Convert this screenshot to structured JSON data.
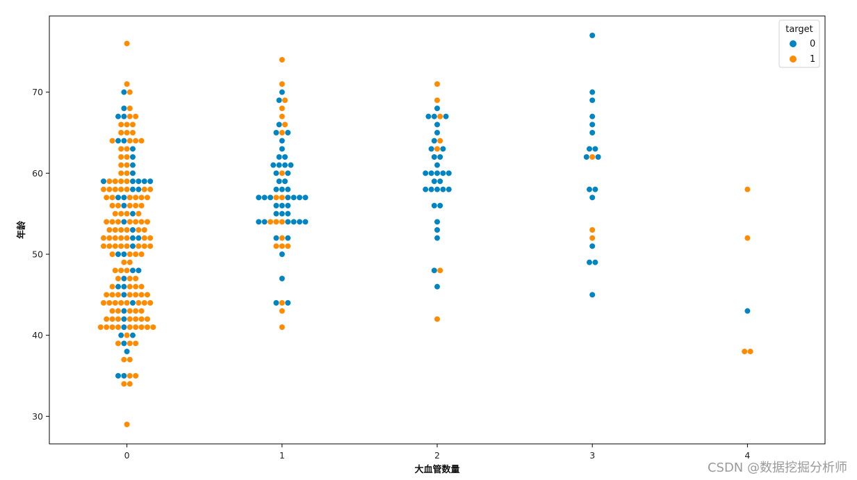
{
  "watermark": "CSDN @数据挖掘分析师",
  "chart_data": {
    "type": "scatter",
    "subtype": "swarm",
    "title": "",
    "xlabel": "大血管数量",
    "ylabel": "年龄",
    "categories": [
      "0",
      "1",
      "2",
      "3",
      "4"
    ],
    "ylim": [
      26.6,
      79.4
    ],
    "yticks": [
      30,
      40,
      50,
      60,
      70
    ],
    "grid": false,
    "legend": {
      "title": "target",
      "placement": "top-right",
      "entries": [
        {
          "label": "0",
          "color": "#0184c2"
        },
        {
          "label": "1",
          "color": "#ff8c00"
        }
      ]
    },
    "series": [
      {
        "name": "0",
        "color": "#0184c2",
        "points": [
          [
            0,
            70
          ],
          [
            0,
            68
          ],
          [
            0,
            67
          ],
          [
            0,
            67
          ],
          [
            0,
            64
          ],
          [
            0,
            64
          ],
          [
            0,
            63
          ],
          [
            0,
            62
          ],
          [
            0,
            61
          ],
          [
            0,
            60
          ],
          [
            0,
            59
          ],
          [
            0,
            59
          ],
          [
            0,
            59
          ],
          [
            0,
            59
          ],
          [
            0,
            59
          ],
          [
            0,
            58
          ],
          [
            0,
            58
          ],
          [
            0,
            57
          ],
          [
            0,
            57
          ],
          [
            0,
            56
          ],
          [
            0,
            55
          ],
          [
            0,
            54
          ],
          [
            0,
            53
          ],
          [
            0,
            52
          ],
          [
            0,
            52
          ],
          [
            0,
            51
          ],
          [
            0,
            50
          ],
          [
            0,
            50
          ],
          [
            0,
            48
          ],
          [
            0,
            48
          ],
          [
            0,
            47
          ],
          [
            0,
            46
          ],
          [
            0,
            46
          ],
          [
            0,
            45
          ],
          [
            0,
            44
          ],
          [
            0,
            43
          ],
          [
            0,
            42
          ],
          [
            0,
            41
          ],
          [
            0,
            40
          ],
          [
            0,
            40
          ],
          [
            0,
            39
          ],
          [
            0,
            38
          ],
          [
            0,
            35
          ],
          [
            0,
            35
          ],
          [
            1,
            70
          ],
          [
            1,
            69
          ],
          [
            1,
            66
          ],
          [
            1,
            65
          ],
          [
            1,
            65
          ],
          [
            1,
            64
          ],
          [
            1,
            63
          ],
          [
            1,
            62
          ],
          [
            1,
            62
          ],
          [
            1,
            61
          ],
          [
            1,
            61
          ],
          [
            1,
            61
          ],
          [
            1,
            61
          ],
          [
            1,
            60
          ],
          [
            1,
            60
          ],
          [
            1,
            59
          ],
          [
            1,
            59
          ],
          [
            1,
            58
          ],
          [
            1,
            58
          ],
          [
            1,
            58
          ],
          [
            1,
            57
          ],
          [
            1,
            57
          ],
          [
            1,
            57
          ],
          [
            1,
            57
          ],
          [
            1,
            57
          ],
          [
            1,
            57
          ],
          [
            1,
            57
          ],
          [
            1,
            56
          ],
          [
            1,
            56
          ],
          [
            1,
            56
          ],
          [
            1,
            55
          ],
          [
            1,
            55
          ],
          [
            1,
            55
          ],
          [
            1,
            54
          ],
          [
            1,
            54
          ],
          [
            1,
            54
          ],
          [
            1,
            54
          ],
          [
            1,
            54
          ],
          [
            1,
            54
          ],
          [
            1,
            52
          ],
          [
            1,
            52
          ],
          [
            1,
            50
          ],
          [
            1,
            47
          ],
          [
            1,
            44
          ],
          [
            1,
            44
          ],
          [
            2,
            68
          ],
          [
            2,
            67
          ],
          [
            2,
            67
          ],
          [
            2,
            67
          ],
          [
            2,
            66
          ],
          [
            2,
            65
          ],
          [
            2,
            64
          ],
          [
            2,
            63
          ],
          [
            2,
            63
          ],
          [
            2,
            62
          ],
          [
            2,
            62
          ],
          [
            2,
            61
          ],
          [
            2,
            60
          ],
          [
            2,
            60
          ],
          [
            2,
            60
          ],
          [
            2,
            60
          ],
          [
            2,
            60
          ],
          [
            2,
            59
          ],
          [
            2,
            59
          ],
          [
            2,
            58
          ],
          [
            2,
            58
          ],
          [
            2,
            58
          ],
          [
            2,
            58
          ],
          [
            2,
            58
          ],
          [
            2,
            56
          ],
          [
            2,
            56
          ],
          [
            2,
            54
          ],
          [
            2,
            53
          ],
          [
            2,
            52
          ],
          [
            2,
            48
          ],
          [
            2,
            46
          ],
          [
            3,
            77
          ],
          [
            3,
            70
          ],
          [
            3,
            69
          ],
          [
            3,
            67
          ],
          [
            3,
            66
          ],
          [
            3,
            65
          ],
          [
            3,
            63
          ],
          [
            3,
            63
          ],
          [
            3,
            62
          ],
          [
            3,
            62
          ],
          [
            3,
            58
          ],
          [
            3,
            58
          ],
          [
            3,
            57
          ],
          [
            3,
            51
          ],
          [
            3,
            49
          ],
          [
            3,
            49
          ],
          [
            3,
            45
          ],
          [
            4,
            43
          ]
        ]
      },
      {
        "name": "1",
        "color": "#ff8c00",
        "points": [
          [
            0,
            76
          ],
          [
            0,
            71
          ],
          [
            0,
            70
          ],
          [
            0,
            68
          ],
          [
            0,
            67
          ],
          [
            0,
            67
          ],
          [
            0,
            66
          ],
          [
            0,
            66
          ],
          [
            0,
            66
          ],
          [
            0,
            65
          ],
          [
            0,
            65
          ],
          [
            0,
            65
          ],
          [
            0,
            64
          ],
          [
            0,
            64
          ],
          [
            0,
            64
          ],
          [
            0,
            64
          ],
          [
            0,
            63
          ],
          [
            0,
            63
          ],
          [
            0,
            62
          ],
          [
            0,
            62
          ],
          [
            0,
            61
          ],
          [
            0,
            61
          ],
          [
            0,
            60
          ],
          [
            0,
            60
          ],
          [
            0,
            59
          ],
          [
            0,
            59
          ],
          [
            0,
            59
          ],
          [
            0,
            59
          ],
          [
            0,
            58
          ],
          [
            0,
            58
          ],
          [
            0,
            58
          ],
          [
            0,
            58
          ],
          [
            0,
            58
          ],
          [
            0,
            58
          ],
          [
            0,
            58
          ],
          [
            0,
            57
          ],
          [
            0,
            57
          ],
          [
            0,
            57
          ],
          [
            0,
            57
          ],
          [
            0,
            57
          ],
          [
            0,
            57
          ],
          [
            0,
            56
          ],
          [
            0,
            56
          ],
          [
            0,
            56
          ],
          [
            0,
            56
          ],
          [
            0,
            56
          ],
          [
            0,
            55
          ],
          [
            0,
            55
          ],
          [
            0,
            55
          ],
          [
            0,
            55
          ],
          [
            0,
            54
          ],
          [
            0,
            54
          ],
          [
            0,
            54
          ],
          [
            0,
            54
          ],
          [
            0,
            54
          ],
          [
            0,
            54
          ],
          [
            0,
            54
          ],
          [
            0,
            53
          ],
          [
            0,
            53
          ],
          [
            0,
            53
          ],
          [
            0,
            53
          ],
          [
            0,
            53
          ],
          [
            0,
            53
          ],
          [
            0,
            52
          ],
          [
            0,
            52
          ],
          [
            0,
            52
          ],
          [
            0,
            52
          ],
          [
            0,
            52
          ],
          [
            0,
            52
          ],
          [
            0,
            52
          ],
          [
            0,
            51
          ],
          [
            0,
            51
          ],
          [
            0,
            51
          ],
          [
            0,
            51
          ],
          [
            0,
            51
          ],
          [
            0,
            51
          ],
          [
            0,
            51
          ],
          [
            0,
            51
          ],
          [
            0,
            50
          ],
          [
            0,
            50
          ],
          [
            0,
            50
          ],
          [
            0,
            50
          ],
          [
            0,
            49
          ],
          [
            0,
            49
          ],
          [
            0,
            48
          ],
          [
            0,
            48
          ],
          [
            0,
            48
          ],
          [
            0,
            47
          ],
          [
            0,
            47
          ],
          [
            0,
            47
          ],
          [
            0,
            46
          ],
          [
            0,
            46
          ],
          [
            0,
            46
          ],
          [
            0,
            46
          ],
          [
            0,
            45
          ],
          [
            0,
            45
          ],
          [
            0,
            45
          ],
          [
            0,
            45
          ],
          [
            0,
            45
          ],
          [
            0,
            45
          ],
          [
            0,
            45
          ],
          [
            0,
            44
          ],
          [
            0,
            44
          ],
          [
            0,
            44
          ],
          [
            0,
            44
          ],
          [
            0,
            44
          ],
          [
            0,
            44
          ],
          [
            0,
            44
          ],
          [
            0,
            44
          ],
          [
            0,
            43
          ],
          [
            0,
            43
          ],
          [
            0,
            43
          ],
          [
            0,
            43
          ],
          [
            0,
            43
          ],
          [
            0,
            42
          ],
          [
            0,
            42
          ],
          [
            0,
            42
          ],
          [
            0,
            42
          ],
          [
            0,
            42
          ],
          [
            0,
            42
          ],
          [
            0,
            42
          ],
          [
            0,
            41
          ],
          [
            0,
            41
          ],
          [
            0,
            41
          ],
          [
            0,
            41
          ],
          [
            0,
            41
          ],
          [
            0,
            41
          ],
          [
            0,
            41
          ],
          [
            0,
            41
          ],
          [
            0,
            41
          ],
          [
            0,
            40
          ],
          [
            0,
            39
          ],
          [
            0,
            39
          ],
          [
            0,
            39
          ],
          [
            0,
            37
          ],
          [
            0,
            37
          ],
          [
            0,
            35
          ],
          [
            0,
            35
          ],
          [
            0,
            34
          ],
          [
            0,
            34
          ],
          [
            0,
            29
          ],
          [
            1,
            74
          ],
          [
            1,
            71
          ],
          [
            1,
            69
          ],
          [
            1,
            68
          ],
          [
            1,
            67
          ],
          [
            1,
            66
          ],
          [
            1,
            65
          ],
          [
            1,
            60
          ],
          [
            1,
            57
          ],
          [
            1,
            57
          ],
          [
            1,
            54
          ],
          [
            1,
            54
          ],
          [
            1,
            54
          ],
          [
            1,
            52
          ],
          [
            1,
            51
          ],
          [
            1,
            51
          ],
          [
            1,
            51
          ],
          [
            1,
            44
          ],
          [
            1,
            43
          ],
          [
            1,
            41
          ],
          [
            2,
            71
          ],
          [
            2,
            69
          ],
          [
            2,
            67
          ],
          [
            2,
            64
          ],
          [
            2,
            63
          ],
          [
            2,
            48
          ],
          [
            2,
            42
          ],
          [
            3,
            62
          ],
          [
            3,
            53
          ],
          [
            3,
            52
          ],
          [
            4,
            58
          ],
          [
            4,
            52
          ],
          [
            4,
            38
          ],
          [
            4,
            38
          ]
        ]
      }
    ]
  }
}
